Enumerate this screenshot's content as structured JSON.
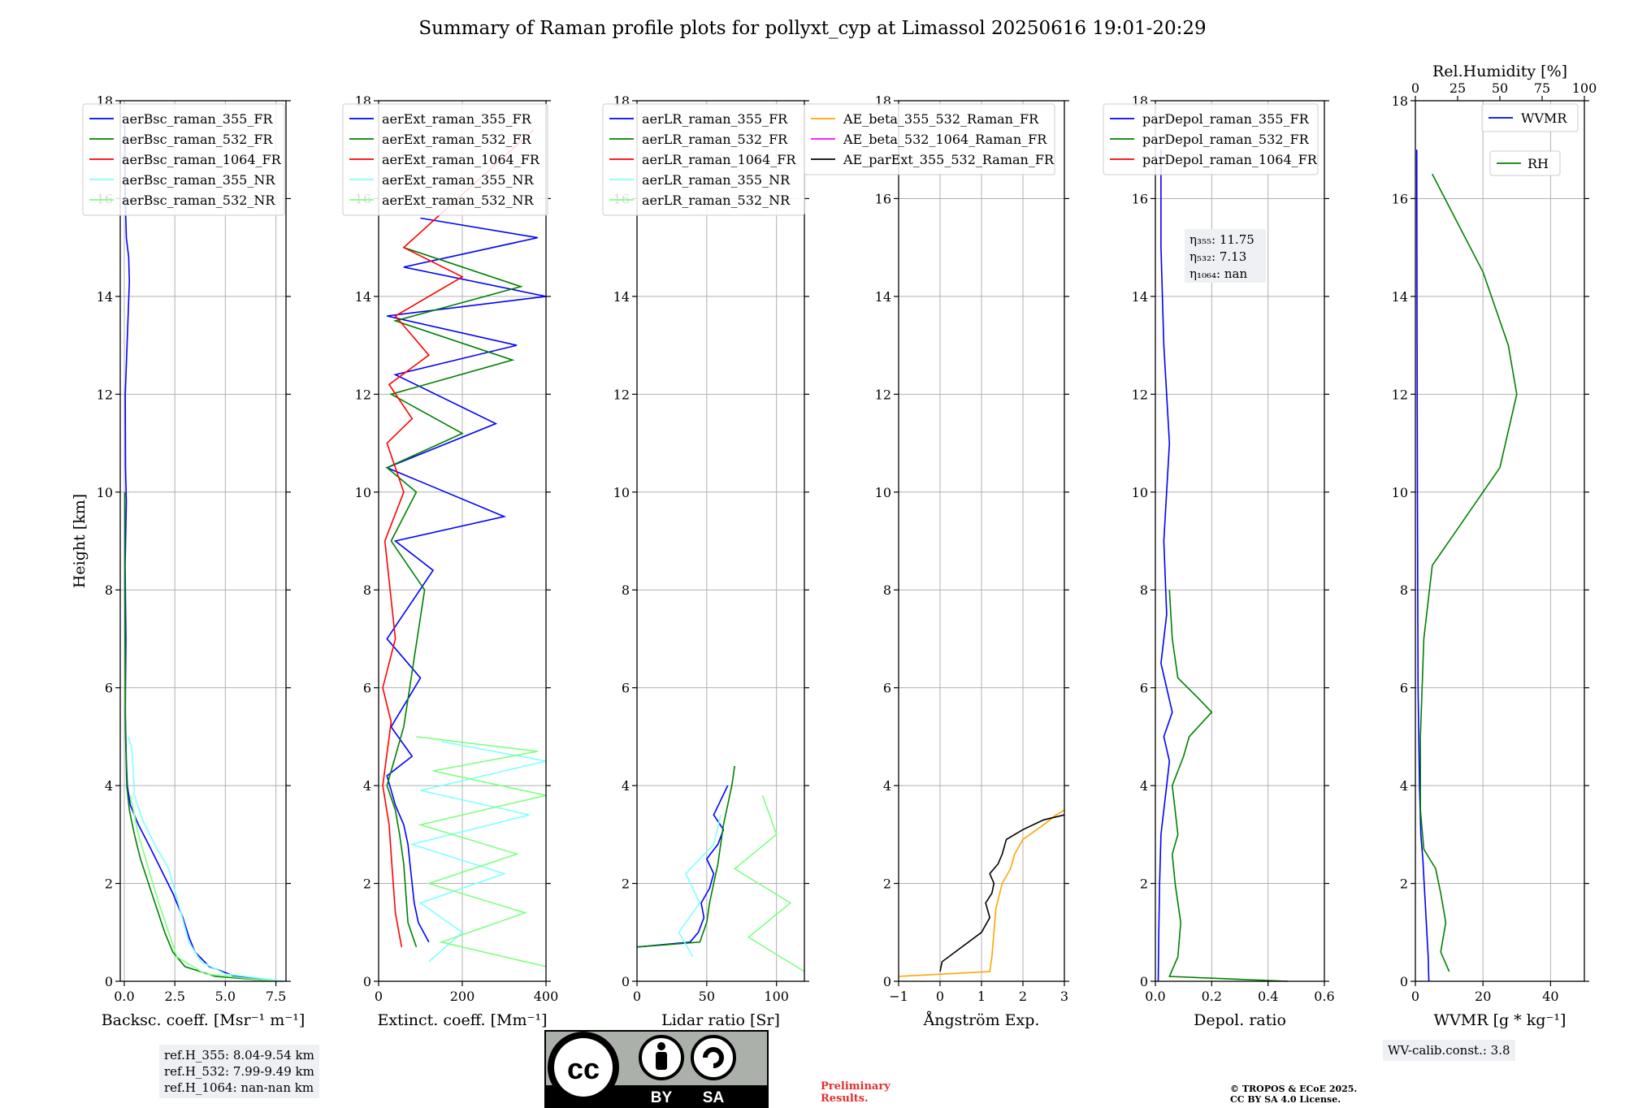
{
  "title": "Summary of Raman profile plots for pollyxt_cyp at Limassol 20250616 19:01-20:29",
  "colors": {
    "blue": "#0000ff",
    "green": "#008000",
    "red": "#ff0000",
    "cyan": "#7fffff",
    "lightgreen": "#80ff80",
    "orange": "#ffa500",
    "magenta": "#ff00ff",
    "black": "#000000"
  },
  "chart_data": [
    {
      "type": "line",
      "panel": "backscatter",
      "xlabel": "Backsc. coeff. [Msr⁻¹ m⁻¹]",
      "ylabel": "Height [km]",
      "xlim": [
        -0.2,
        8.0
      ],
      "ylim": [
        0,
        18
      ],
      "xticks": [
        0,
        2.5,
        5,
        7.5
      ],
      "xticklabels": [
        "0.0",
        "2.5",
        "5.0",
        "7.5"
      ],
      "yticks": [
        0,
        2,
        4,
        6,
        8,
        10,
        12,
        14,
        16,
        18
      ],
      "legend": "top-left",
      "series": [
        {
          "name": "aerBsc_raman_355_FR",
          "color": "#0000ff",
          "x": [
            7.8,
            5.5,
            4.2,
            3.5,
            3.2,
            2.9,
            2.4,
            1.8,
            1.2,
            0.7,
            0.3,
            0.15,
            0.1,
            0.05,
            0.08,
            0.04,
            0.1,
            0.06,
            0.05,
            0.25,
            0.22,
            0.1,
            0.05,
            0.02
          ],
          "y": [
            0,
            0.1,
            0.3,
            0.6,
            0.9,
            1.3,
            1.8,
            2.3,
            2.8,
            3.2,
            3.6,
            4.0,
            4.5,
            5.5,
            7.0,
            8.5,
            9.8,
            10.5,
            12.0,
            14.3,
            14.8,
            15.2,
            16.0,
            17.5
          ]
        },
        {
          "name": "aerBsc_raman_532_FR",
          "color": "#008000",
          "x": [
            7.6,
            4.5,
            3.0,
            2.4,
            2.0,
            1.6,
            1.2,
            0.8,
            0.5,
            0.25,
            0.12,
            0.06,
            0.05,
            0.03,
            0.02
          ],
          "y": [
            0,
            0.1,
            0.3,
            0.6,
            1.0,
            1.5,
            2.0,
            2.5,
            3.0,
            3.5,
            4.0,
            5.0,
            6.0,
            8.0,
            10.0
          ]
        },
        {
          "name": "aerBsc_raman_1064_FR",
          "color": "#ff0000",
          "x": [],
          "y": []
        },
        {
          "name": "aerBsc_raman_355_NR",
          "color": "#7fffff",
          "x": [
            7.9,
            5.0,
            3.8,
            3.2,
            2.6,
            2.2,
            1.5,
            0.9,
            0.5,
            0.45,
            0.35,
            0.2
          ],
          "y": [
            0,
            0.15,
            0.4,
            0.8,
            1.7,
            2.3,
            2.8,
            3.3,
            3.8,
            4.3,
            4.8,
            5.0
          ]
        },
        {
          "name": "aerBsc_raman_532_NR",
          "color": "#80ff80",
          "x": [
            7.5,
            4.0,
            2.6,
            2.2,
            1.7,
            1.2,
            0.7,
            0.3
          ],
          "y": [
            0,
            0.15,
            0.5,
            1.0,
            1.6,
            2.3,
            3.0,
            3.8
          ]
        }
      ]
    },
    {
      "type": "line",
      "panel": "extinction",
      "xlabel": "Extinct. coeff. [Mm⁻¹]",
      "xlim": [
        0,
        400
      ],
      "ylim": [
        0,
        18
      ],
      "xticks": [
        0,
        200,
        400
      ],
      "xticklabels": [
        "0",
        "200",
        "400"
      ],
      "yticks": [
        0,
        2,
        4,
        6,
        8,
        10,
        12,
        14,
        16,
        18
      ],
      "legend": "top-left",
      "series": [
        {
          "name": "aerExt_raman_355_FR",
          "color": "#0000ff",
          "x": [
            120,
            95,
            85,
            80,
            75,
            70,
            60,
            40,
            20,
            80,
            30,
            100,
            20,
            130,
            40,
            300,
            20,
            280,
            40,
            330,
            20,
            400,
            60,
            380,
            100
          ],
          "y": [
            0.8,
            1.2,
            1.6,
            2.0,
            2.4,
            2.8,
            3.2,
            3.6,
            4.2,
            4.6,
            5.2,
            6.2,
            7.0,
            8.4,
            9.0,
            9.5,
            10.5,
            11.4,
            12.4,
            13.0,
            13.6,
            14.0,
            14.6,
            15.2,
            15.6
          ]
        },
        {
          "name": "aerExt_raman_532_FR",
          "color": "#008000",
          "x": [
            90,
            70,
            65,
            60,
            50,
            40,
            20,
            60,
            110,
            30,
            90,
            20,
            200,
            30,
            320,
            40,
            340,
            60
          ],
          "y": [
            0.7,
            1.2,
            1.8,
            2.4,
            3.0,
            3.5,
            4.0,
            5.2,
            8.0,
            9.0,
            10.0,
            10.5,
            11.2,
            12.0,
            12.7,
            13.5,
            14.2,
            15.0
          ]
        },
        {
          "name": "aerExt_raman_1064_FR",
          "color": "#ff0000",
          "x": [
            55,
            40,
            35,
            30,
            25,
            10,
            30,
            10,
            40,
            15,
            60,
            20,
            80,
            25,
            120,
            40,
            200,
            60,
            370
          ],
          "y": [
            0.7,
            1.4,
            2.0,
            2.6,
            3.2,
            4.0,
            5.3,
            6.0,
            7.0,
            9.0,
            10.0,
            11.0,
            11.5,
            12.2,
            12.8,
            13.6,
            14.4,
            15.0,
            17.4
          ]
        },
        {
          "name": "aerExt_raman_355_NR",
          "color": "#7fffff",
          "x": [
            120,
            200,
            100,
            300,
            80,
            360,
            100,
            400,
            150
          ],
          "y": [
            0.4,
            1.0,
            1.6,
            2.2,
            2.8,
            3.4,
            3.9,
            4.5,
            4.9
          ]
        },
        {
          "name": "aerExt_raman_532_NR",
          "color": "#80ff80",
          "x": [
            400,
            150,
            350,
            120,
            330,
            100,
            400,
            130,
            380,
            90
          ],
          "y": [
            0.3,
            0.8,
            1.4,
            2.0,
            2.6,
            3.2,
            3.8,
            4.3,
            4.7,
            5.0
          ]
        }
      ]
    },
    {
      "type": "line",
      "panel": "lidar_ratio",
      "xlabel": "Lidar ratio [Sr]",
      "xlim": [
        0,
        120
      ],
      "ylim": [
        0,
        18
      ],
      "xticks": [
        0,
        50,
        100
      ],
      "xticklabels": [
        "0",
        "50",
        "100"
      ],
      "yticks": [
        0,
        2,
        4,
        6,
        8,
        10,
        12,
        14,
        16,
        18
      ],
      "legend": "top-left",
      "series": [
        {
          "name": "aerLR_raman_355_FR",
          "color": "#0000ff",
          "x": [
            0,
            38,
            44,
            48,
            46,
            52,
            55,
            50,
            58,
            62,
            55,
            60,
            65
          ],
          "y": [
            0.7,
            0.8,
            1.0,
            1.3,
            1.6,
            1.9,
            2.2,
            2.5,
            2.8,
            3.1,
            3.4,
            3.7,
            4.0
          ]
        },
        {
          "name": "aerLR_raman_532_FR",
          "color": "#008000",
          "x": [
            0,
            45,
            50,
            52,
            55,
            58,
            60,
            62,
            65,
            68,
            70
          ],
          "y": [
            0.7,
            0.8,
            1.2,
            1.6,
            2.0,
            2.4,
            2.8,
            3.2,
            3.6,
            4.0,
            4.4
          ]
        },
        {
          "name": "aerLR_raman_1064_FR",
          "color": "#ff0000",
          "x": [],
          "y": []
        },
        {
          "name": "aerLR_raman_355_NR",
          "color": "#7fffff",
          "x": [
            40,
            30,
            45,
            35,
            55,
            60
          ],
          "y": [
            0.5,
            1.0,
            1.6,
            2.2,
            2.8,
            3.4
          ]
        },
        {
          "name": "aerLR_raman_532_NR",
          "color": "#80ff80",
          "x": [
            120,
            80,
            110,
            70,
            100,
            90
          ],
          "y": [
            0.2,
            0.9,
            1.6,
            2.3,
            3.0,
            3.8
          ]
        }
      ]
    },
    {
      "type": "line",
      "panel": "angstrom",
      "xlabel": "Ångström Exp.",
      "xlim": [
        -1,
        3
      ],
      "ylim": [
        0,
        18
      ],
      "xticks": [
        -1,
        0,
        1,
        2,
        3
      ],
      "xticklabels": [
        "−1",
        "0",
        "1",
        "2",
        "3"
      ],
      "yticks": [
        0,
        2,
        4,
        6,
        8,
        10,
        12,
        14,
        16,
        18
      ],
      "legend": "top",
      "series": [
        {
          "name": "AE_beta_355_532_Raman_FR",
          "color": "#ffa500",
          "x": [
            -1,
            1.2,
            1.25,
            1.3,
            1.35,
            1.5,
            1.7,
            1.8,
            2.0,
            2.5,
            2.8,
            3.0
          ],
          "y": [
            0.1,
            0.2,
            0.5,
            1.0,
            1.5,
            2.0,
            2.3,
            2.6,
            2.9,
            3.2,
            3.4,
            3.5
          ]
        },
        {
          "name": "AE_beta_532_1064_Raman_FR",
          "color": "#ff00ff",
          "x": [],
          "y": []
        },
        {
          "name": "AE_parExt_355_532_Raman_FR",
          "color": "#000000",
          "x": [
            0.0,
            0.05,
            1.0,
            1.2,
            1.1,
            1.25,
            1.3,
            1.2,
            1.4,
            1.5,
            1.6,
            2.0,
            2.5,
            3.0
          ],
          "y": [
            0.2,
            0.4,
            1.0,
            1.3,
            1.6,
            1.8,
            2.0,
            2.2,
            2.4,
            2.6,
            2.9,
            3.1,
            3.3,
            3.4
          ]
        }
      ]
    },
    {
      "type": "line",
      "panel": "depolarization",
      "xlabel": "Depol. ratio",
      "xlim": [
        0,
        0.6
      ],
      "ylim": [
        0,
        18
      ],
      "xticks": [
        0,
        0.2,
        0.4,
        0.6
      ],
      "xticklabels": [
        "0.0",
        "0.2",
        "0.4",
        "0.6"
      ],
      "yticks": [
        0,
        2,
        4,
        6,
        8,
        10,
        12,
        14,
        16,
        18
      ],
      "legend": "top-left",
      "series": [
        {
          "name": "parDepol_raman_355_FR",
          "color": "#0000ff",
          "x": [
            0.01,
            0.012,
            0.015,
            0.02,
            0.03,
            0.04,
            0.05,
            0.03,
            0.06,
            0.02,
            0.04,
            0.03,
            0.05,
            0.03,
            0.02,
            0.02
          ],
          "y": [
            0,
            1.0,
            2.0,
            3.0,
            3.5,
            4.0,
            4.5,
            5.0,
            5.5,
            6.5,
            7.5,
            9.0,
            11.0,
            13.0,
            15.0,
            17.0
          ]
        },
        {
          "name": "parDepol_raman_532_FR",
          "color": "#008000",
          "x": [
            0.47,
            0.05,
            0.08,
            0.09,
            0.07,
            0.06,
            0.08,
            0.07,
            0.06,
            0.1,
            0.12,
            0.2,
            0.15,
            0.08,
            0.06,
            0.05
          ],
          "y": [
            0,
            0.1,
            0.5,
            1.2,
            2.0,
            2.6,
            3.0,
            3.5,
            4.0,
            4.6,
            5.0,
            5.5,
            5.8,
            6.2,
            7.0,
            8.0
          ]
        },
        {
          "name": "parDepol_raman_1064_FR",
          "color": "#ff0000",
          "x": [],
          "y": []
        }
      ],
      "annotation": [
        "η₃₅₅: 11.75",
        "η₅₃₂: 7.13",
        "η₁₀₆₄: nan"
      ]
    },
    {
      "type": "line",
      "panel": "water_vapor",
      "xlabel": "WVMR [g * kg⁻¹]",
      "x2label": "Rel.Humidity [%]",
      "xlim": [
        0,
        50
      ],
      "x2lim": [
        0,
        100
      ],
      "ylim": [
        0,
        18
      ],
      "xticks": [
        0,
        20,
        40
      ],
      "xticklabels": [
        "0",
        "20",
        "40"
      ],
      "x2ticks": [
        0,
        25,
        50,
        75,
        100
      ],
      "x2ticklabels": [
        "0",
        "25",
        "50",
        "75",
        "100"
      ],
      "yticks": [
        0,
        2,
        4,
        6,
        8,
        10,
        12,
        14,
        16,
        18
      ],
      "legend": "top-right",
      "series": [
        {
          "name": "WVMR",
          "color": "#0000ff",
          "x": [
            4,
            3.8,
            3.4,
            3.0,
            2.6,
            2.2,
            1.6,
            1.2,
            1.0,
            0.8,
            0.7,
            0.6,
            0.5,
            0.4
          ],
          "y": [
            0,
            0.5,
            1.0,
            1.5,
            2.0,
            2.5,
            3.0,
            4.0,
            5.0,
            6.0,
            8.0,
            10.0,
            13.0,
            17.0
          ]
        },
        {
          "name": "RH",
          "color": "#008000",
          "x2": [
            20,
            15,
            18,
            15,
            12,
            5,
            3,
            3,
            5,
            10,
            30,
            50,
            60,
            55,
            40,
            25,
            10
          ],
          "y": [
            0.2,
            0.6,
            1.2,
            1.8,
            2.3,
            2.7,
            3.5,
            5.0,
            7.0,
            8.5,
            9.5,
            10.5,
            12.0,
            13.0,
            14.5,
            15.5,
            16.5
          ]
        }
      ]
    }
  ],
  "info_boxes": {
    "refH_355": "ref.H_355: 8.04-9.54 km",
    "refH_532": "ref.H_532: 7.99-9.49 km",
    "refH_1064": "ref.H_1064: nan-nan km",
    "wv_calib": "WV-calib.const.: 3.8"
  },
  "cc_badge": {
    "cc": "cc",
    "by": "BY",
    "sa": "SA"
  },
  "footer": {
    "prelim_line1": "Preliminary",
    "prelim_line2": "Results.",
    "copyright_line1": "© TROPOS & ECoE 2025.",
    "copyright_line2": "CC BY SA 4.0 License."
  }
}
